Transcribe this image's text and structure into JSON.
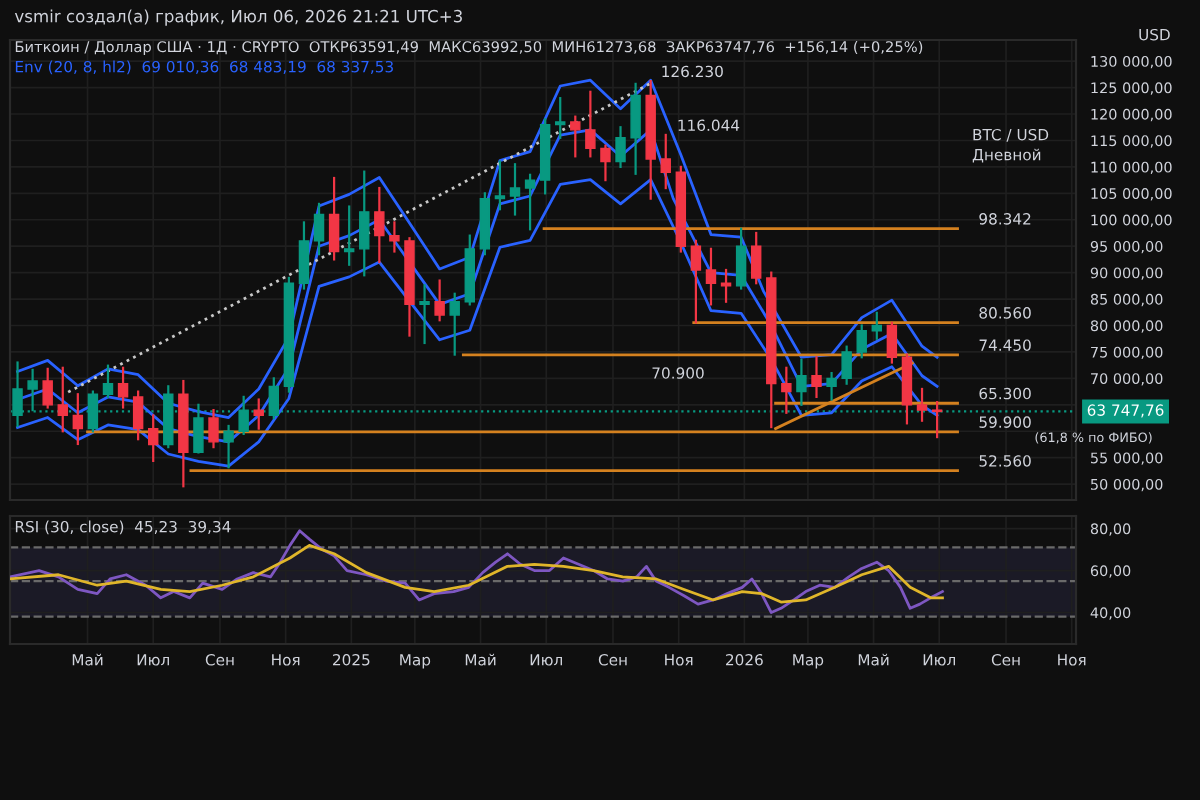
{
  "chart_data": [
    {
      "type": "candlestick",
      "title": "vsmir создал(а) график, Июл 06, 2026 21:21 UTC+3",
      "subtitle": "Биткоин / Доллар США · 1Д · CRYPTO  ОТКР63591,49  МАКС63992,50  МИН61273,68  ЗАКР63747,76  +156,14 (+0,25%)",
      "x": [
        "2024-02-26",
        "2024-03-11",
        "2024-03-25",
        "2024-04-08",
        "2024-04-22",
        "2024-05-06",
        "2024-05-20",
        "2024-06-03",
        "2024-06-17",
        "2024-07-01",
        "2024-07-15",
        "2024-07-29",
        "2024-08-12",
        "2024-08-26",
        "2024-09-09",
        "2024-09-23",
        "2024-10-07",
        "2024-10-21",
        "2024-11-04",
        "2024-11-18",
        "2024-12-02",
        "2024-12-16",
        "2024-12-30",
        "2025-01-13",
        "2025-01-27",
        "2025-02-10",
        "2025-02-24",
        "2025-03-10",
        "2025-03-24",
        "2025-04-07",
        "2025-04-21",
        "2025-05-05",
        "2025-05-19",
        "2025-06-02",
        "2025-06-16",
        "2025-06-30",
        "2025-07-14",
        "2025-07-28",
        "2025-08-11",
        "2025-08-25",
        "2025-09-08",
        "2025-09-22",
        "2025-10-06",
        "2025-10-20",
        "2025-11-03",
        "2025-11-17",
        "2025-12-01",
        "2025-12-15",
        "2025-12-29",
        "2026-01-12",
        "2026-01-26",
        "2026-02-09",
        "2026-02-23",
        "2026-03-09",
        "2026-03-23",
        "2026-04-06",
        "2026-04-20",
        "2026-05-04",
        "2026-05-18",
        "2026-06-01",
        "2026-06-15",
        "2026-06-29"
      ],
      "ohlc": [
        [
          63000,
          73000,
          61000,
          68000
        ],
        [
          68000,
          71600,
          64000,
          69500
        ],
        [
          69500,
          71800,
          64500,
          65000
        ],
        [
          65000,
          72000,
          60000,
          63000
        ],
        [
          63000,
          67000,
          57600,
          60500
        ],
        [
          60500,
          67500,
          60000,
          67000
        ],
        [
          67000,
          72400,
          66500,
          69000
        ],
        [
          69000,
          72000,
          64500,
          66500
        ],
        [
          66500,
          67500,
          58500,
          60500
        ],
        [
          60500,
          63000,
          54400,
          57500
        ],
        [
          57500,
          68500,
          57000,
          67000
        ],
        [
          67000,
          69500,
          49600,
          56000
        ],
        [
          56000,
          65000,
          56000,
          62500
        ],
        [
          62500,
          64000,
          57000,
          58000
        ],
        [
          58000,
          61000,
          53200,
          60000
        ],
        [
          60000,
          66500,
          59500,
          64000
        ],
        [
          64000,
          66000,
          60500,
          63000
        ],
        [
          63000,
          70000,
          62500,
          68500
        ],
        [
          68500,
          89000,
          67500,
          88000
        ],
        [
          88000,
          99500,
          87000,
          96000
        ],
        [
          96000,
          103000,
          93500,
          101000
        ],
        [
          101000,
          107900,
          92500,
          94000
        ],
        [
          94000,
          102500,
          91500,
          94500
        ],
        [
          94500,
          109100,
          89500,
          101500
        ],
        [
          101500,
          106000,
          92000,
          97000
        ],
        [
          97000,
          99500,
          94000,
          96000
        ],
        [
          96000,
          96500,
          78100,
          84000
        ],
        [
          84000,
          87600,
          76700,
          84500
        ],
        [
          84500,
          88500,
          81000,
          82000
        ],
        [
          82000,
          86000,
          74500,
          84500
        ],
        [
          84500,
          97000,
          84000,
          94500
        ],
        [
          94500,
          105000,
          93500,
          104000
        ],
        [
          104000,
          111000,
          102000,
          104500
        ],
        [
          104500,
          110500,
          101000,
          106000
        ],
        [
          106000,
          108500,
          98200,
          107500
        ],
        [
          107500,
          119000,
          105000,
          118000
        ],
        [
          118000,
          123000,
          115500,
          118500
        ],
        [
          118500,
          119500,
          112000,
          117000
        ],
        [
          117000,
          124200,
          112000,
          113500
        ],
        [
          113500,
          114000,
          107500,
          111000
        ],
        [
          111000,
          117500,
          110000,
          115500
        ],
        [
          115500,
          125700,
          108700,
          123500
        ],
        [
          123500,
          126230,
          104000,
          111500
        ],
        [
          111500,
          116044,
          106000,
          109000
        ],
        [
          109000,
          110000,
          94000,
          95000
        ],
        [
          95000,
          96000,
          80600,
          90500
        ],
        [
          90500,
          94500,
          84000,
          88000
        ],
        [
          88000,
          90500,
          84500,
          87500
        ],
        [
          87500,
          98300,
          87000,
          95000
        ],
        [
          95000,
          97500,
          88000,
          89000
        ],
        [
          89000,
          90000,
          60800,
          69000
        ],
        [
          69000,
          72000,
          63500,
          67500
        ],
        [
          67500,
          73500,
          65000,
          70500
        ],
        [
          70500,
          74000,
          66500,
          68500
        ],
        [
          68500,
          71000,
          66000,
          70000
        ],
        [
          70000,
          76000,
          69000,
          75000
        ],
        [
          75000,
          80000,
          74000,
          79000
        ],
        [
          79000,
          82400,
          77500,
          80000
        ],
        [
          80000,
          80500,
          73000,
          74000
        ],
        [
          74000,
          74500,
          61500,
          65000
        ],
        [
          65000,
          68000,
          62000,
          64000
        ],
        [
          64000,
          65500,
          58900,
          63747.76
        ]
      ],
      "series": [
        {
          "type": "line",
          "color": "#2962ff",
          "x": [
            "2024-02-26",
            "2024-03-25",
            "2024-04-22",
            "2024-05-20",
            "2024-06-17",
            "2024-07-15",
            "2024-08-12",
            "2024-09-09",
            "2024-10-07",
            "2024-11-04",
            "2024-12-02",
            "2024-12-30",
            "2025-01-27",
            "2025-02-24",
            "2025-03-24",
            "2025-04-21",
            "2025-05-19",
            "2025-06-16",
            "2025-07-14",
            "2025-08-11",
            "2025-09-08",
            "2025-10-06",
            "2025-11-03",
            "2025-12-01",
            "2025-12-29",
            "2026-01-19",
            "2026-02-23",
            "2026-03-23",
            "2026-04-20",
            "2026-05-18",
            "2026-06-15",
            "2026-06-29"
          ],
          "values": [
            71300,
            73400,
            68600,
            71800,
            70700,
            65300,
            63700,
            62600,
            68000,
            77800,
            102600,
            104800,
            108000,
            99400,
            90700,
            92900,
            111200,
            112900,
            125300,
            126400,
            121000,
            126400,
            112300,
            97200,
            96700,
            86400,
            74000,
            74500,
            81500,
            84800,
            76100,
            74000
          ]
        },
        {
          "type": "line",
          "color": "#2962ff",
          "x": [
            "2024-02-26",
            "2024-03-25",
            "2024-04-22",
            "2024-05-20",
            "2024-06-17",
            "2024-07-15",
            "2024-08-12",
            "2024-09-09",
            "2024-10-07",
            "2024-11-04",
            "2024-12-02",
            "2024-12-30",
            "2025-01-27",
            "2025-02-24",
            "2025-03-24",
            "2025-04-21",
            "2025-05-19",
            "2025-06-16",
            "2025-07-14",
            "2025-08-11",
            "2025-09-08",
            "2025-10-06",
            "2025-10-27",
            "2025-12-01",
            "2025-12-29",
            "2026-01-26",
            "2026-02-23",
            "2026-03-23",
            "2026-04-20",
            "2026-05-18",
            "2026-06-15",
            "2026-06-29"
          ],
          "values": [
            66000,
            68000,
            63500,
            66500,
            65500,
            60500,
            59000,
            58000,
            63000,
            72000,
            95000,
            97000,
            100000,
            92000,
            84000,
            86000,
            103000,
            104500,
            116000,
            117000,
            112000,
            117000,
            104000,
            90000,
            89500,
            80000,
            68500,
            69000,
            75500,
            78500,
            70500,
            68500
          ]
        },
        {
          "type": "line",
          "color": "#2962ff",
          "x": [
            "2024-02-26",
            "2024-03-25",
            "2024-04-22",
            "2024-05-20",
            "2024-06-17",
            "2024-07-15",
            "2024-08-12",
            "2024-09-09",
            "2024-10-07",
            "2024-11-04",
            "2024-12-02",
            "2024-12-30",
            "2025-01-27",
            "2025-02-24",
            "2025-03-24",
            "2025-04-21",
            "2025-05-19",
            "2025-06-16",
            "2025-07-14",
            "2025-08-11",
            "2025-09-08",
            "2025-10-06",
            "2025-11-03",
            "2025-12-01",
            "2025-12-29",
            "2026-01-26",
            "2026-02-23",
            "2026-03-23",
            "2026-04-20",
            "2026-05-18",
            "2026-06-15",
            "2026-06-29"
          ],
          "values": [
            60700,
            62600,
            58400,
            61200,
            60300,
            55700,
            54300,
            53400,
            58000,
            66200,
            87400,
            89200,
            92000,
            84600,
            77300,
            79100,
            94800,
            96100,
            106700,
            107600,
            103000,
            107600,
            95700,
            82800,
            82300,
            73600,
            63000,
            63500,
            69500,
            72200,
            64900,
            63000
          ]
        },
        {
          "type": "line",
          "color": "#c8c8c8",
          "line_style": "dotted",
          "x": [
            "2024-04-13",
            "2025-10-05"
          ],
          "values": [
            67400,
            125700
          ]
        },
        {
          "type": "line",
          "color": "#d4811f",
          "x": [
            "2026-01-30",
            "2026-06-06"
          ],
          "values": [
            60500,
            72900
          ]
        },
        {
          "type": "line",
          "color": "#d4811f",
          "x": [
            "2025-06-29",
            "2026-07-18"
          ],
          "values": [
            98342,
            98342
          ]
        },
        {
          "type": "line",
          "color": "#d4811f",
          "x": [
            "2025-11-15",
            "2026-07-18"
          ],
          "values": [
            80560,
            80560
          ]
        },
        {
          "type": "line",
          "color": "#d4811f",
          "x": [
            "2025-04-15",
            "2026-07-18"
          ],
          "values": [
            74450,
            74450
          ]
        },
        {
          "type": "line",
          "color": "#d4811f",
          "x": [
            "2026-01-30",
            "2026-07-18"
          ],
          "values": [
            65300,
            65300
          ]
        },
        {
          "type": "line",
          "color": "#d4811f",
          "x": [
            "2024-05-01",
            "2026-07-18"
          ],
          "values": [
            59900,
            59900
          ]
        },
        {
          "type": "line",
          "color": "#d4811f",
          "x": [
            "2024-08-05",
            "2026-07-18"
          ],
          "values": [
            52560,
            52560
          ]
        }
      ],
      "ref_lines": [
        {
          "axis": "y",
          "value": 63747.76,
          "label": "63 747,76",
          "color": "#089981",
          "line_style": "dotted"
        }
      ],
      "annotations": [
        "Env (20, 8, hl2)  69 010,36  68 483,19  68 337,53",
        "BTC / USD",
        "Дневной",
        "USD",
        "70.900",
        "(61,8 % по ФИБО)",
        {
          "text": "126.230",
          "x": "2025-10-05",
          "y": 126230
        },
        {
          "text": "116.044",
          "x": "2025-10-20",
          "y": 116044
        },
        {
          "text": "98.342",
          "x": "2026-07-27",
          "y": 98342
        },
        {
          "text": "80.560",
          "x": "2026-07-27",
          "y": 80560
        },
        {
          "text": "74.450",
          "x": "2026-07-27",
          "y": 74450
        },
        {
          "text": "65.300",
          "x": "2026-07-27",
          "y": 65300
        },
        {
          "text": "59.900",
          "x": "2026-07-27",
          "y": 59900
        },
        {
          "text": "52.560",
          "x": "2026-07-27",
          "y": 52560
        }
      ],
      "xlim": [
        "2024-02-19",
        "2026-11-05"
      ],
      "xticks": [
        {
          "value": "2024-05-01",
          "label": null
        },
        {
          "value": "2024-07-01",
          "label": null
        },
        {
          "value": "2024-09-01",
          "label": null
        },
        {
          "value": "2024-11-01",
          "label": null
        },
        {
          "value": "2025-01-01",
          "label": null
        },
        {
          "value": "2025-03-01",
          "label": null
        },
        {
          "value": "2025-05-01",
          "label": null
        },
        {
          "value": "2025-07-01",
          "label": null
        },
        {
          "value": "2025-09-01",
          "label": null
        },
        {
          "value": "2025-11-01",
          "label": null
        },
        {
          "value": "2026-01-01",
          "label": null
        },
        {
          "value": "2026-03-01",
          "label": null
        },
        {
          "value": "2026-05-01",
          "label": null
        },
        {
          "value": "2026-07-01",
          "label": null
        },
        {
          "value": "2026-09-01",
          "label": null
        },
        {
          "value": "2026-11-01",
          "label": null
        }
      ],
      "ylim": [
        47000,
        134000
      ],
      "yticks": [
        {
          "value": 50000,
          "label": "50 000,00"
        },
        {
          "value": 55000,
          "label": "55 000,00"
        },
        {
          "value": 60000,
          "label": null
        },
        {
          "value": 65000,
          "label": null
        },
        {
          "value": 70000,
          "label": "70 000,00"
        },
        {
          "value": 75000,
          "label": "75 000,00"
        },
        {
          "value": 80000,
          "label": "80 000,00"
        },
        {
          "value": 85000,
          "label": "85 000,00"
        },
        {
          "value": 90000,
          "label": "90 000,00"
        },
        {
          "value": 95000,
          "label": "95 000,00"
        },
        {
          "value": 100000,
          "label": "100 000,00"
        },
        {
          "value": 105000,
          "label": "105 000,00"
        },
        {
          "value": 110000,
          "label": "110 000,00"
        },
        {
          "value": 115000,
          "label": "115 000,00"
        },
        {
          "value": 120000,
          "label": "120 000,00"
        },
        {
          "value": 125000,
          "label": "125 000,00"
        },
        {
          "value": 130000,
          "label": "130 000,00"
        }
      ],
      "tick_labels": "y",
      "grid": true
    },
    {
      "type": "line",
      "annotations": [
        "RSI (30, close)  45,23  39,34"
      ],
      "series": [
        {
          "color": "#7e57c2",
          "x": [
            "2024-02-19",
            "2024-03-17",
            "2024-04-04",
            "2024-04-22",
            "2024-05-10",
            "2024-05-22",
            "2024-06-06",
            "2024-06-24",
            "2024-07-08",
            "2024-07-20",
            "2024-08-04",
            "2024-08-16",
            "2024-09-03",
            "2024-09-17",
            "2024-10-02",
            "2024-10-18",
            "2024-10-27",
            "2024-11-05",
            "2024-11-14",
            "2024-11-23",
            "2024-12-05",
            "2024-12-16",
            "2024-12-28",
            "2025-01-15",
            "2025-02-02",
            "2025-02-20",
            "2025-03-05",
            "2025-03-19",
            "2025-04-06",
            "2025-04-20",
            "2025-05-03",
            "2025-05-15",
            "2025-05-26",
            "2025-06-07",
            "2025-06-20",
            "2025-07-04",
            "2025-07-17",
            "2025-07-31",
            "2025-08-14",
            "2025-08-27",
            "2025-09-10",
            "2025-09-23",
            "2025-10-02",
            "2025-10-11",
            "2025-10-23",
            "2025-11-06",
            "2025-11-19",
            "2025-12-03",
            "2025-12-16",
            "2025-12-30",
            "2026-01-08",
            "2026-01-17",
            "2026-01-26",
            "2026-02-04",
            "2026-02-16",
            "2026-02-27",
            "2026-03-12",
            "2026-03-26",
            "2026-04-08",
            "2026-04-20",
            "2026-05-04",
            "2026-05-15",
            "2026-05-26",
            "2026-06-04",
            "2026-06-13",
            "2026-06-23",
            "2026-07-04"
          ],
          "values": [
            57,
            60,
            57,
            51,
            49,
            56,
            58,
            53,
            47,
            50,
            47,
            54,
            51,
            56,
            59,
            57,
            64,
            72,
            79,
            75,
            70,
            67,
            60,
            58,
            55,
            54,
            46,
            49,
            50,
            52,
            59,
            64,
            68,
            63,
            60,
            60,
            66,
            63,
            60,
            56,
            55,
            57,
            62,
            55,
            52,
            48,
            44,
            46,
            49,
            52,
            56,
            49,
            40,
            42,
            46,
            50,
            53,
            52,
            57,
            61,
            64,
            60,
            52,
            42,
            44,
            47,
            50
          ]
        },
        {
          "color": "#e0b62a",
          "x": [
            "2024-02-19",
            "2024-04-04",
            "2024-05-10",
            "2024-06-06",
            "2024-07-08",
            "2024-08-04",
            "2024-09-03",
            "2024-10-02",
            "2024-11-05",
            "2024-11-23",
            "2024-12-16",
            "2025-01-15",
            "2025-02-20",
            "2025-03-19",
            "2025-04-20",
            "2025-05-26",
            "2025-06-20",
            "2025-07-17",
            "2025-08-14",
            "2025-09-10",
            "2025-10-11",
            "2025-11-06",
            "2025-12-03",
            "2025-12-30",
            "2026-01-17",
            "2026-02-04",
            "2026-02-27",
            "2026-03-26",
            "2026-04-20",
            "2026-05-15",
            "2026-06-04",
            "2026-06-23",
            "2026-07-04"
          ],
          "values": [
            56,
            58,
            53,
            55,
            51,
            50,
            53,
            57,
            66,
            72,
            68,
            59,
            52,
            50,
            53,
            62,
            63,
            62,
            60,
            57,
            56,
            51,
            46,
            50,
            49,
            45,
            46,
            52,
            58,
            62,
            52,
            47,
            47
          ]
        }
      ],
      "ref_lines": [
        {
          "axis": "y",
          "value": 71,
          "color": "#6a6a6a",
          "line_style": "dashed"
        },
        {
          "axis": "y",
          "value": 55,
          "color": "#6a6a6a",
          "line_style": "dashed"
        },
        {
          "axis": "y",
          "value": 38,
          "color": "#6a6a6a",
          "line_style": "dashed"
        }
      ],
      "bands": [
        {
          "axis": "y",
          "from": 38,
          "to": 71,
          "color": "#1b1a26"
        }
      ],
      "xlim": [
        "2024-02-19",
        "2026-11-05"
      ],
      "xticks": [
        {
          "value": "2024-05-01",
          "label": "Май"
        },
        {
          "value": "2024-07-01",
          "label": "Июл"
        },
        {
          "value": "2024-09-01",
          "label": "Сен"
        },
        {
          "value": "2024-11-01",
          "label": "Ноя"
        },
        {
          "value": "2025-01-01",
          "label": "2025"
        },
        {
          "value": "2025-03-01",
          "label": "Мар"
        },
        {
          "value": "2025-05-01",
          "label": "Май"
        },
        {
          "value": "2025-07-01",
          "label": "Июл"
        },
        {
          "value": "2025-09-01",
          "label": "Сен"
        },
        {
          "value": "2025-11-01",
          "label": "Ноя"
        },
        {
          "value": "2026-01-01",
          "label": "2026"
        },
        {
          "value": "2026-03-01",
          "label": "Мар"
        },
        {
          "value": "2026-05-01",
          "label": "Май"
        },
        {
          "value": "2026-07-01",
          "label": "Июл"
        },
        {
          "value": "2026-09-01",
          "label": "Сен"
        },
        {
          "value": "2026-11-01",
          "label": "Ноя"
        }
      ],
      "ylim": [
        25,
        86
      ],
      "yticks": [
        {
          "value": 40,
          "label": "40,00"
        },
        {
          "value": 60,
          "label": "60,00"
        },
        {
          "value": 80,
          "label": "80,00"
        }
      ],
      "grid": true
    }
  ]
}
